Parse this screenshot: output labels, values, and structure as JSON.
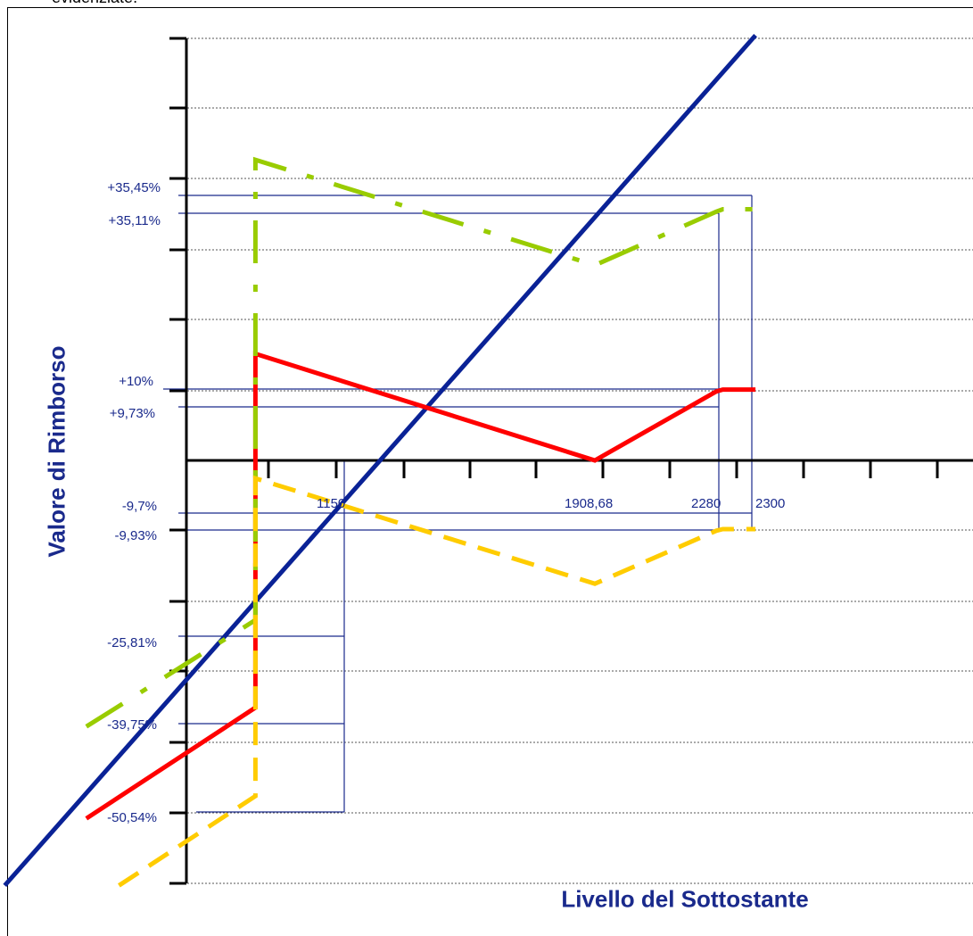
{
  "page": {
    "top_text": "evidenziate."
  },
  "colors": {
    "axis_label": "#1a2a8c",
    "annotation": "#1a2a8c",
    "grid": "#555555",
    "axis": "#000000"
  },
  "chart_data": {
    "type": "line",
    "title": "",
    "xlabel": "Livello del Sottostante",
    "ylabel": "Valore di Rimborso",
    "grid": true,
    "x_annotations": [
      "1150",
      "1908,68",
      "2280",
      "2300"
    ],
    "y_annotations": [
      "+35,45%",
      "+35,11%",
      "+10%",
      "+9,73%",
      "-9,7%",
      "-9,93%",
      "-25,81%",
      "-39,75%",
      "-50,54%"
    ],
    "series": [
      {
        "color": "#0a2296",
        "style": "solid",
        "points": [
          [
            0.1,
            -0.6
          ],
          [
            2.4,
            0.6
          ]
        ]
      },
      {
        "color": "#ff0000",
        "style": "solid",
        "points": [
          [
            0.35,
            -0.5054
          ],
          [
            0.868,
            -0.3489
          ],
          [
            0.868,
            0.1505
          ],
          [
            1.908,
            0.0
          ],
          [
            2.28,
            0.0973
          ],
          [
            2.3,
            0.1
          ],
          [
            2.4,
            0.1
          ]
        ]
      },
      {
        "color": "#99cc00",
        "style": "dashdot",
        "points": [
          [
            0.35,
            -0.3757
          ],
          [
            0.868,
            -0.2253
          ],
          [
            0.868,
            0.4243
          ],
          [
            1.908,
            0.2756
          ],
          [
            2.28,
            0.3511
          ],
          [
            2.3,
            0.3545
          ],
          [
            2.4,
            0.3545
          ]
        ]
      },
      {
        "color": "#ffcc00",
        "style": "dashed",
        "points": [
          [
            0.45,
            -0.6
          ],
          [
            0.868,
            -0.4738
          ],
          [
            0.868,
            -0.0253
          ],
          [
            1.908,
            -0.174
          ],
          [
            2.28,
            -0.0993
          ],
          [
            2.3,
            -0.097
          ],
          [
            2.4,
            -0.097
          ]
        ]
      }
    ]
  }
}
